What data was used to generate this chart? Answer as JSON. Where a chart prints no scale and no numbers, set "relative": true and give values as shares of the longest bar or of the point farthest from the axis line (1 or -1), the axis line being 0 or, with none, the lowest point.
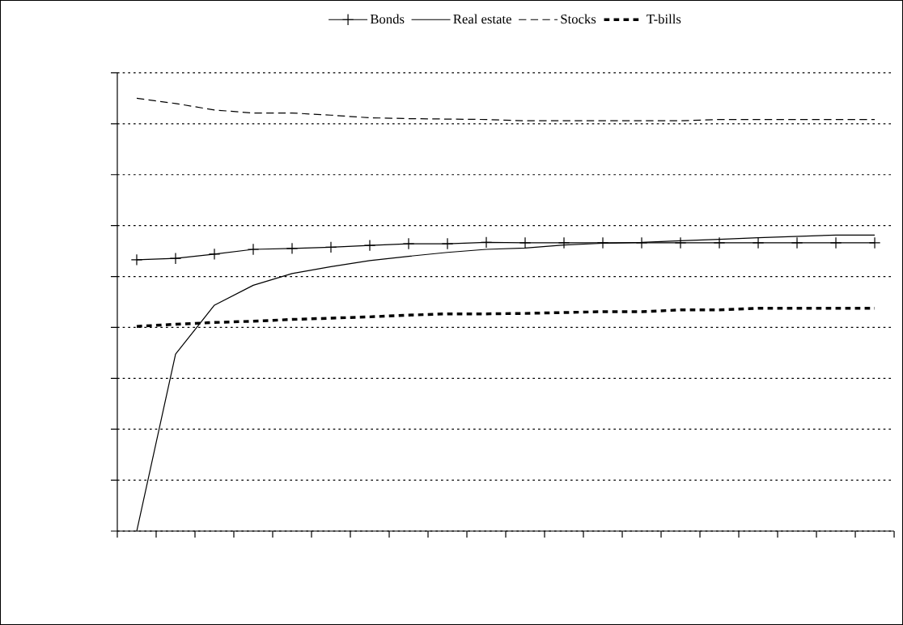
{
  "chart_data": {
    "type": "line",
    "relative": true,
    "grid": "y",
    "legend": "top",
    "categories": [
      null,
      null,
      null,
      null,
      null,
      null,
      null,
      null,
      null,
      null,
      null,
      null,
      null,
      null,
      null,
      null,
      null,
      null,
      null,
      null
    ],
    "series": [
      {
        "name": "Bonds",
        "color": "#000000",
        "line_style": "solid",
        "marker": "cross",
        "values": [
          0.627,
          0.63,
          0.64,
          0.651,
          0.653,
          0.656,
          0.66,
          0.664,
          0.664,
          0.667,
          0.666,
          0.666,
          0.666,
          0.666,
          0.666,
          0.666,
          0.666,
          0.666,
          0.666,
          0.666
        ]
      },
      {
        "name": "Real estate",
        "color": "#000000",
        "line_style": "solid",
        "marker": "none",
        "values": [
          0,
          0.409,
          0.522,
          0.568,
          0.595,
          0.611,
          0.625,
          0.635,
          0.644,
          0.651,
          0.654,
          0.661,
          0.665,
          0.667,
          0.671,
          0.674,
          0.678,
          0.681,
          0.684,
          0.684
        ]
      },
      {
        "name": "Stocks",
        "color": "#000000",
        "line_style": "dashed",
        "marker": "none",
        "values": [
          1.0,
          0.988,
          0.973,
          0.966,
          0.966,
          0.961,
          0.955,
          0.953,
          0.952,
          0.951,
          0.948,
          0.948,
          0.948,
          0.948,
          0.948,
          0.951,
          0.951,
          0.951,
          0.951,
          0.951
        ]
      },
      {
        "name": "T-bills",
        "color": "#000000",
        "line_style": "dotted",
        "marker": "none",
        "values": [
          0.473,
          0.478,
          0.482,
          0.485,
          0.489,
          0.492,
          0.495,
          0.499,
          0.502,
          0.502,
          0.503,
          0.505,
          0.507,
          0.507,
          0.511,
          0.511,
          0.515,
          0.515,
          0.515,
          0.515
        ]
      }
    ]
  }
}
